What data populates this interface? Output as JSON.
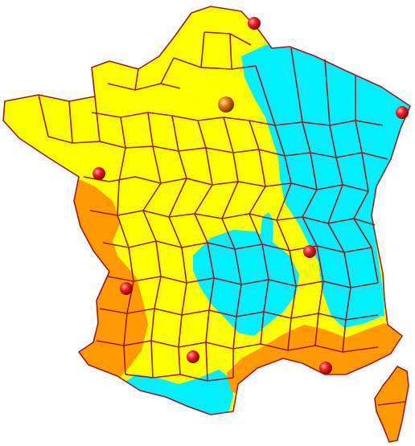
{
  "map": {
    "colors": {
      "background": "#ffffff",
      "zone_yellow": "#ffff00",
      "zone_orange": "#ff9900",
      "zone_cyan": "#00f0ff",
      "border": "#a0181c",
      "city_marker": "#e8101a",
      "capital_marker": "#c06010"
    },
    "zones": [
      {
        "name": "yellow",
        "color": "#ffff00"
      },
      {
        "name": "orange",
        "color": "#ff9900"
      },
      {
        "name": "cyan",
        "color": "#00f0ff"
      }
    ],
    "markers": [
      {
        "kind": "capital",
        "icon": "orange-sphere"
      },
      {
        "kind": "city",
        "icon": "red-sphere"
      },
      {
        "kind": "city",
        "icon": "red-sphere"
      },
      {
        "kind": "city",
        "icon": "red-sphere"
      },
      {
        "kind": "city",
        "icon": "red-sphere"
      },
      {
        "kind": "city",
        "icon": "red-sphere"
      },
      {
        "kind": "city",
        "icon": "red-sphere"
      },
      {
        "kind": "city",
        "icon": "red-sphere"
      }
    ]
  }
}
